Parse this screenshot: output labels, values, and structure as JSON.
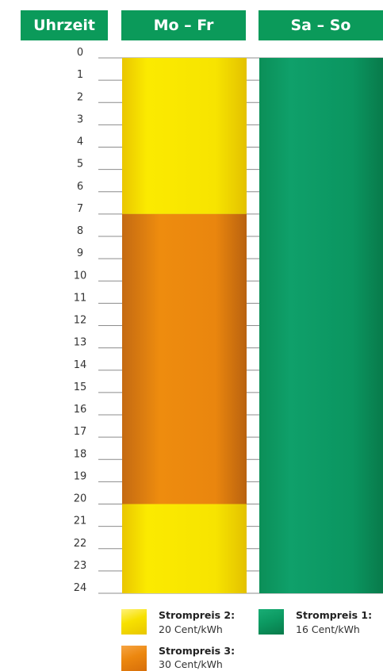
{
  "header": {
    "time_label": "Uhrzeit",
    "weekday_label": "Mo – Fr",
    "weekend_label": "Sa – So"
  },
  "colors": {
    "header_bg": "#0b9a5a",
    "yellow": "#f6e500",
    "orange": "#e8870e",
    "green": "#0c9a62"
  },
  "chart_data": {
    "type": "bar",
    "y_ticks": [
      "0",
      "1",
      "2",
      "3",
      "4",
      "5",
      "6",
      "7",
      "8",
      "9",
      "10",
      "11",
      "12",
      "13",
      "14",
      "15",
      "16",
      "17",
      "18",
      "19",
      "20",
      "21",
      "22",
      "23",
      "24"
    ],
    "ylim": [
      0,
      24
    ],
    "categories": [
      "Mo – Fr",
      "Sa – So"
    ],
    "segments": [
      {
        "category": "Mo – Fr",
        "start": 0,
        "end": 7,
        "series": "Strompreis 2"
      },
      {
        "category": "Mo – Fr",
        "start": 7,
        "end": 20,
        "series": "Strompreis 3"
      },
      {
        "category": "Mo – Fr",
        "start": 20,
        "end": 24,
        "series": "Strompreis 2"
      },
      {
        "category": "Sa – So",
        "start": 0,
        "end": 24,
        "series": "Strompreis 1"
      }
    ]
  },
  "legend": [
    {
      "title": "Strompreis 2:",
      "value": "20 Cent/kWh",
      "color_key": "yellow"
    },
    {
      "title": "Strompreis 3:",
      "value": "30 Cent/kWh",
      "color_key": "orange"
    },
    {
      "title": "Strompreis 1:",
      "value": "16 Cent/kWh",
      "color_key": "green"
    }
  ]
}
